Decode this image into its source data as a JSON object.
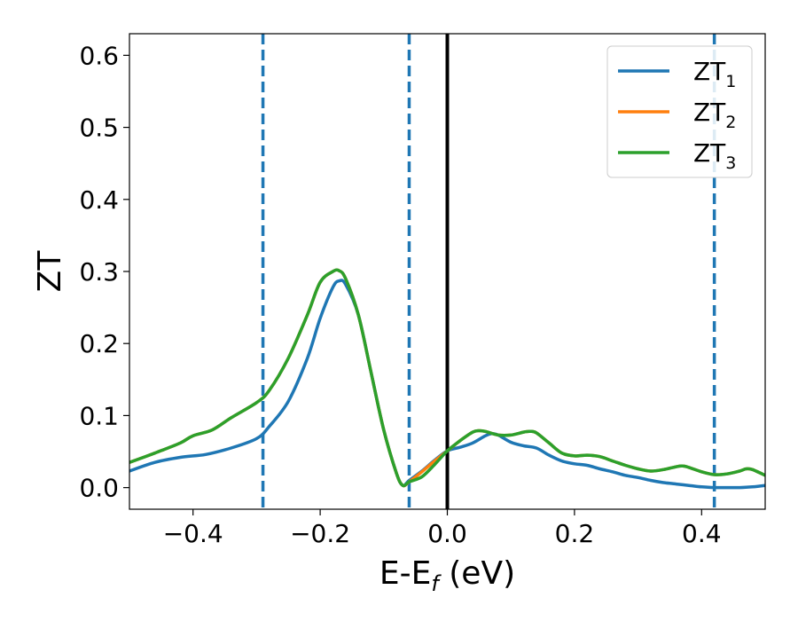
{
  "chart_data": {
    "type": "line",
    "xlabel": "E-E",
    "xlabel_sub": "f",
    "xlabel_unit": " (eV)",
    "ylabel": "ZT",
    "xlim": [
      -0.5,
      0.5
    ],
    "ylim": [
      -0.03,
      0.63
    ],
    "xticks": [
      -0.4,
      -0.2,
      0.0,
      0.2,
      0.4
    ],
    "xtick_labels": [
      "−0.4",
      "−0.2",
      "0.0",
      "0.2",
      "0.4"
    ],
    "yticks": [
      0.0,
      0.1,
      0.2,
      0.3,
      0.4,
      0.5,
      0.6
    ],
    "ytick_labels": [
      "0.0",
      "0.1",
      "0.2",
      "0.3",
      "0.4",
      "0.5",
      "0.6"
    ],
    "grid": false,
    "legend_position": "top-right",
    "vlines": [
      {
        "x": -0.29,
        "style": "dashed",
        "color": "#1f77b4"
      },
      {
        "x": -0.06,
        "style": "dashed",
        "color": "#1f77b4"
      },
      {
        "x": 0.0,
        "style": "solid",
        "color": "#000000"
      },
      {
        "x": 0.42,
        "style": "dashed",
        "color": "#1f77b4"
      }
    ],
    "series": [
      {
        "name": "ZT",
        "sub": "1",
        "color": "#1f77b4",
        "x": [
          -0.5,
          -0.46,
          -0.42,
          -0.38,
          -0.34,
          -0.3,
          -0.28,
          -0.25,
          -0.22,
          -0.2,
          -0.18,
          -0.17,
          -0.16,
          -0.14,
          -0.12,
          -0.1,
          -0.08,
          -0.07,
          -0.06,
          -0.04,
          -0.02,
          0.0,
          0.02,
          0.04,
          0.06,
          0.07,
          0.08,
          0.1,
          0.12,
          0.14,
          0.16,
          0.18,
          0.2,
          0.22,
          0.24,
          0.26,
          0.28,
          0.3,
          0.32,
          0.34,
          0.36,
          0.38,
          0.4,
          0.42,
          0.44,
          0.46,
          0.48,
          0.5
        ],
        "y": [
          0.023,
          0.035,
          0.042,
          0.046,
          0.055,
          0.068,
          0.085,
          0.12,
          0.18,
          0.235,
          0.278,
          0.287,
          0.282,
          0.24,
          0.16,
          0.08,
          0.02,
          0.003,
          0.01,
          0.023,
          0.038,
          0.051,
          0.056,
          0.062,
          0.072,
          0.075,
          0.073,
          0.063,
          0.058,
          0.055,
          0.045,
          0.037,
          0.033,
          0.031,
          0.026,
          0.022,
          0.017,
          0.014,
          0.01,
          0.007,
          0.005,
          0.003,
          0.001,
          0.0,
          0.0,
          0.0,
          0.001,
          0.003
        ]
      },
      {
        "name": "ZT",
        "sub": "2",
        "color": "#ff7f0e",
        "x": [
          -0.5,
          -0.46,
          -0.42,
          -0.4,
          -0.37,
          -0.34,
          -0.3,
          -0.28,
          -0.25,
          -0.22,
          -0.2,
          -0.18,
          -0.17,
          -0.16,
          -0.14,
          -0.12,
          -0.1,
          -0.08,
          -0.07,
          -0.06,
          -0.04,
          -0.02,
          0.0,
          0.02,
          0.04,
          0.05,
          0.06,
          0.08,
          0.1,
          0.12,
          0.13,
          0.14,
          0.16,
          0.18,
          0.2,
          0.22,
          0.24,
          0.26,
          0.28,
          0.3,
          0.32,
          0.34,
          0.36,
          0.37,
          0.38,
          0.4,
          0.42,
          0.44,
          0.46,
          0.47,
          0.48,
          0.5
        ],
        "y": [
          0.035,
          0.048,
          0.062,
          0.072,
          0.08,
          0.097,
          0.118,
          0.135,
          0.18,
          0.24,
          0.285,
          0.3,
          0.301,
          0.29,
          0.24,
          0.16,
          0.08,
          0.02,
          0.003,
          0.008,
          0.022,
          0.037,
          0.051,
          0.065,
          0.077,
          0.079,
          0.078,
          0.073,
          0.073,
          0.077,
          0.078,
          0.076,
          0.062,
          0.048,
          0.044,
          0.045,
          0.043,
          0.037,
          0.031,
          0.026,
          0.023,
          0.025,
          0.029,
          0.03,
          0.028,
          0.022,
          0.018,
          0.019,
          0.023,
          0.026,
          0.025,
          0.017
        ]
      },
      {
        "name": "ZT",
        "sub": "3",
        "color": "#2ca02c",
        "x": [
          -0.5,
          -0.46,
          -0.42,
          -0.4,
          -0.37,
          -0.34,
          -0.3,
          -0.28,
          -0.25,
          -0.22,
          -0.2,
          -0.18,
          -0.17,
          -0.16,
          -0.14,
          -0.12,
          -0.1,
          -0.08,
          -0.07,
          -0.06,
          -0.04,
          -0.02,
          0.0,
          0.02,
          0.04,
          0.05,
          0.06,
          0.08,
          0.1,
          0.12,
          0.13,
          0.14,
          0.16,
          0.18,
          0.2,
          0.22,
          0.24,
          0.26,
          0.28,
          0.3,
          0.32,
          0.34,
          0.36,
          0.37,
          0.38,
          0.4,
          0.42,
          0.44,
          0.46,
          0.47,
          0.48,
          0.5
        ],
        "y": [
          0.035,
          0.048,
          0.062,
          0.072,
          0.08,
          0.097,
          0.118,
          0.135,
          0.18,
          0.24,
          0.285,
          0.3,
          0.301,
          0.29,
          0.24,
          0.16,
          0.08,
          0.02,
          0.003,
          0.008,
          0.015,
          0.032,
          0.051,
          0.065,
          0.077,
          0.079,
          0.078,
          0.073,
          0.073,
          0.077,
          0.078,
          0.076,
          0.062,
          0.048,
          0.044,
          0.045,
          0.043,
          0.037,
          0.031,
          0.026,
          0.023,
          0.025,
          0.029,
          0.03,
          0.028,
          0.022,
          0.018,
          0.019,
          0.023,
          0.026,
          0.025,
          0.017
        ]
      }
    ]
  }
}
